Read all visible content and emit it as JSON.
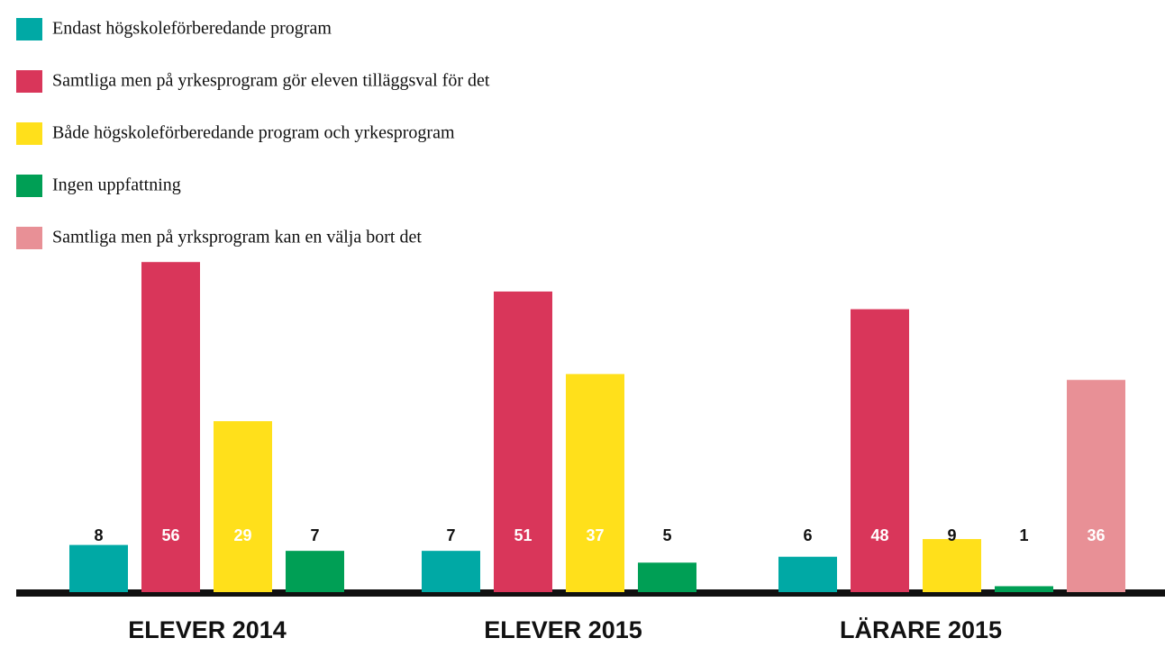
{
  "chart_data": {
    "type": "bar",
    "categories": [
      "ELEVER 2014",
      "ELEVER 2015",
      "LÄRARE 2015"
    ],
    "series": [
      {
        "name": "Endast högskoleförberedande program",
        "color": "#00a9a5",
        "values": [
          8,
          7,
          6
        ]
      },
      {
        "name": "Samtliga men på yrkesprogram gör eleven tilläggsval för det",
        "color": "#d9365a",
        "values": [
          56,
          51,
          48
        ]
      },
      {
        "name": "Både högskoleförberedande program och yrkesprogram",
        "color": "#ffe01b",
        "values": [
          29,
          37,
          9
        ]
      },
      {
        "name": "Ingen uppfattning",
        "color": "#009f55",
        "values": [
          7,
          5,
          1
        ]
      },
      {
        "name": "Samtliga men på yrksprogram kan en välja bort det",
        "color": "#e89096",
        "values": [
          null,
          null,
          36
        ]
      }
    ]
  }
}
